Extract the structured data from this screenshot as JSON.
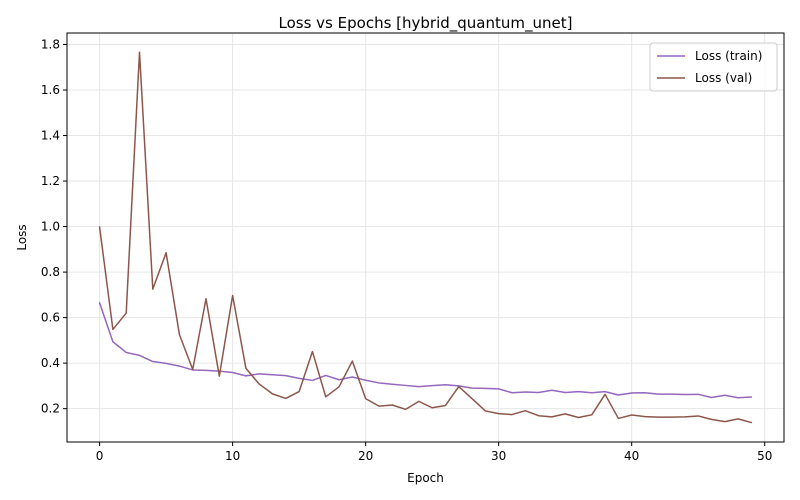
{
  "chart_data": {
    "type": "line",
    "title": "Loss vs Epochs [hybrid_quantum_unet]",
    "xlabel": "Epoch",
    "ylabel": "Loss",
    "xlim": [
      -2.45,
      51.45
    ],
    "ylim": [
      0.0535,
      1.8505
    ],
    "xticks": [
      0,
      10,
      20,
      30,
      40,
      50
    ],
    "yticks": [
      0.2,
      0.4,
      0.6,
      0.8,
      1.0,
      1.2,
      1.4,
      1.6,
      1.8
    ],
    "xtick_labels": [
      "0",
      "10",
      "20",
      "30",
      "40",
      "50"
    ],
    "ytick_labels": [
      "0.2",
      "0.4",
      "0.6",
      "0.8",
      "1.0",
      "1.2",
      "1.4",
      "1.6",
      "1.8"
    ],
    "grid": true,
    "legend_position": "top-right",
    "x": [
      0,
      1,
      2,
      3,
      4,
      5,
      6,
      7,
      8,
      9,
      10,
      11,
      12,
      13,
      14,
      15,
      16,
      17,
      18,
      19,
      20,
      21,
      22,
      23,
      24,
      25,
      26,
      27,
      28,
      29,
      30,
      31,
      32,
      33,
      34,
      35,
      36,
      37,
      38,
      39,
      40,
      41,
      42,
      43,
      44,
      45,
      46,
      47,
      48,
      49
    ],
    "series": [
      {
        "name": "Loss (train)",
        "color": "#9467bd",
        "values": [
          0.665,
          0.494,
          0.447,
          0.434,
          0.407,
          0.399,
          0.387,
          0.37,
          0.368,
          0.365,
          0.359,
          0.344,
          0.353,
          0.349,
          0.345,
          0.333,
          0.324,
          0.346,
          0.327,
          0.339,
          0.325,
          0.313,
          0.307,
          0.302,
          0.297,
          0.301,
          0.305,
          0.3,
          0.29,
          0.289,
          0.287,
          0.27,
          0.273,
          0.271,
          0.281,
          0.271,
          0.275,
          0.27,
          0.275,
          0.26,
          0.269,
          0.27,
          0.264,
          0.264,
          0.262,
          0.263,
          0.249,
          0.259,
          0.248,
          0.251
        ]
      },
      {
        "name": "Loss (val)",
        "color": "#8c564b",
        "values": [
          0.998,
          0.548,
          0.62,
          1.766,
          0.725,
          0.885,
          0.526,
          0.372,
          0.683,
          0.343,
          0.697,
          0.377,
          0.308,
          0.265,
          0.245,
          0.275,
          0.451,
          0.252,
          0.296,
          0.409,
          0.244,
          0.211,
          0.216,
          0.197,
          0.232,
          0.204,
          0.214,
          0.297,
          0.244,
          0.19,
          0.178,
          0.174,
          0.191,
          0.169,
          0.164,
          0.177,
          0.161,
          0.173,
          0.263,
          0.157,
          0.172,
          0.165,
          0.163,
          0.163,
          0.164,
          0.168,
          0.153,
          0.143,
          0.155,
          0.139
        ]
      }
    ]
  }
}
